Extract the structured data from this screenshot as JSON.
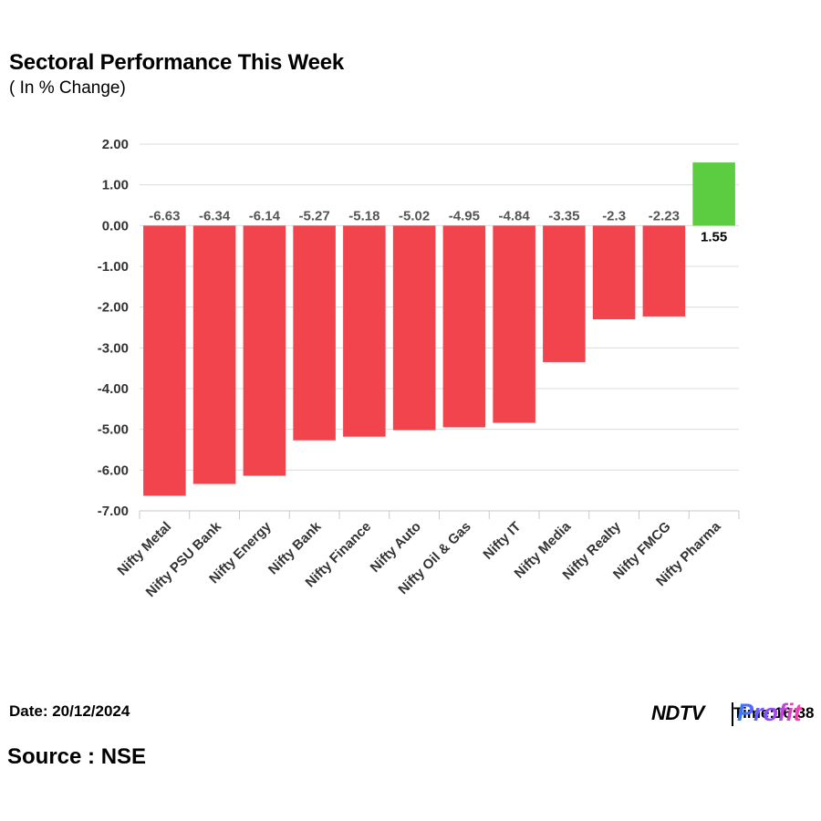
{
  "header": {
    "title": "Sectoral Performance This Week",
    "subtitle": "( In % Change)"
  },
  "footer": {
    "date": "Date: 20/12/2024",
    "source": "Source : NSE"
  },
  "logo": {
    "brand": "NDTV",
    "time_text": "Time:16:38",
    "product": "Profit"
  },
  "colors": {
    "negative": "#f2444d",
    "positive": "#5ccc41",
    "grid": "#dcdcdc",
    "tick_text": "#333333",
    "label_text": "#555555"
  },
  "chart_data": {
    "type": "bar",
    "title": "Sectoral Performance This Week",
    "subtitle": "( In % Change)",
    "xlabel": "",
    "ylabel": "",
    "categories": [
      "Nifty Metal",
      "Nifty PSU Bank",
      "Nifty Energy",
      "Nifty Bank",
      "Nifty Finance",
      "Nifty Auto",
      "Nifty Oil & Gas",
      "Nifty IT",
      "Nifty Media",
      "Nifty Realty",
      "Nifty FMCG",
      "Nifty Pharma"
    ],
    "values": [
      -6.63,
      -6.34,
      -6.14,
      -5.27,
      -5.18,
      -5.02,
      -4.95,
      -4.84,
      -3.35,
      -2.3,
      -2.23,
      1.55
    ],
    "data_labels": [
      "-6.63",
      "-6.34",
      "-6.14",
      "-5.27",
      "-5.18",
      "-5.02",
      "-4.95",
      "-4.84",
      "-3.35",
      "-2.3",
      "-2.23",
      "1.55"
    ],
    "ylim": [
      -7,
      2
    ],
    "yticks": [
      2,
      1,
      0,
      -1,
      -2,
      -3,
      -4,
      -5,
      -6,
      -7
    ],
    "ytick_labels": [
      "2.00",
      "1.00",
      "0.00",
      "-1.00",
      "-2.00",
      "-3.00",
      "-4.00",
      "-5.00",
      "-6.00",
      "-7.00"
    ],
    "grid": true,
    "legend": "none"
  }
}
